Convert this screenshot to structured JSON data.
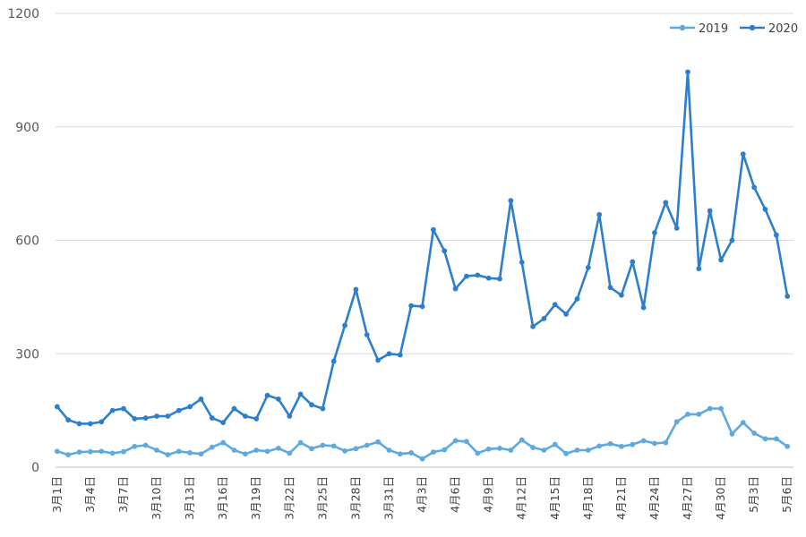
{
  "chart_data": {
    "type": "line",
    "title": "",
    "xlabel": "",
    "ylabel": "",
    "ylim": [
      0,
      1200
    ],
    "yticks": [
      0,
      300,
      600,
      900,
      1200
    ],
    "grid": "horizontal",
    "legend_position": "top-right",
    "x_tick_labels": [
      "3月1日",
      "3月4日",
      "3月7日",
      "3月10日",
      "3月13日",
      "3月16日",
      "3月19日",
      "3月22日",
      "3月25日",
      "3月28日",
      "3月31日",
      "4月3日",
      "4月6日",
      "4月9日",
      "4月12日",
      "4月15日",
      "4月18日",
      "4月21日",
      "4月24日",
      "4月27日",
      "4月30日",
      "5月3日",
      "5月6日"
    ],
    "x_tick_every": 3,
    "series": [
      {
        "name": "2019",
        "color": "#5ea9e0",
        "values": [
          42,
          33,
          40,
          41,
          42,
          37,
          41,
          55,
          58,
          45,
          33,
          42,
          38,
          35,
          53,
          65,
          45,
          35,
          45,
          42,
          50,
          37,
          65,
          49,
          58,
          56,
          43,
          49,
          58,
          67,
          45,
          35,
          38,
          22,
          40,
          46,
          70,
          68,
          37,
          48,
          50,
          45,
          72,
          52,
          45,
          60,
          36,
          45,
          45,
          56,
          62,
          55,
          60,
          70,
          63,
          65,
          120,
          140,
          140,
          155,
          155,
          88,
          118,
          90,
          75,
          75,
          55
        ]
      },
      {
        "name": "2020",
        "color": "#2e7fcb",
        "values": [
          160,
          125,
          115,
          115,
          120,
          150,
          155,
          128,
          130,
          135,
          135,
          150,
          160,
          180,
          130,
          118,
          155,
          135,
          128,
          190,
          180,
          135,
          193,
          165,
          155,
          280,
          375,
          470,
          350,
          283,
          300,
          297,
          427,
          425,
          628,
          572,
          472,
          505,
          508,
          500,
          498,
          705,
          542,
          372,
          393,
          430,
          405,
          445,
          528,
          668,
          475,
          455,
          543,
          422,
          620,
          700,
          632,
          1045,
          525,
          678,
          548,
          600,
          828,
          740,
          682,
          614,
          452
        ]
      }
    ]
  }
}
